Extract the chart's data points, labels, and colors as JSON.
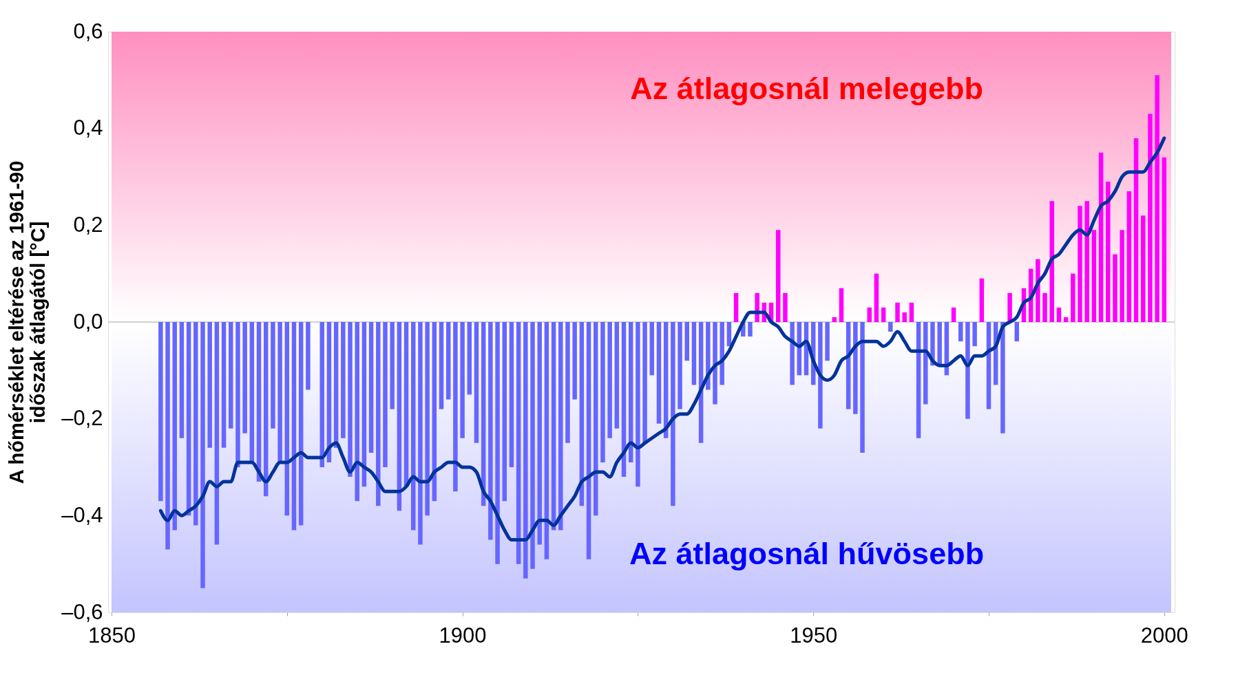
{
  "chart_data": {
    "type": "bar",
    "ylabel": "A hőmérséklet eltérése az 1961-90\nidőszak átlagától [°C]",
    "x": [
      1857,
      1858,
      1859,
      1860,
      1861,
      1862,
      1863,
      1864,
      1865,
      1866,
      1867,
      1868,
      1869,
      1870,
      1871,
      1872,
      1873,
      1874,
      1875,
      1876,
      1877,
      1878,
      1879,
      1880,
      1881,
      1882,
      1883,
      1884,
      1885,
      1886,
      1887,
      1888,
      1889,
      1890,
      1891,
      1892,
      1893,
      1894,
      1895,
      1896,
      1897,
      1898,
      1899,
      1900,
      1901,
      1902,
      1903,
      1904,
      1905,
      1906,
      1907,
      1908,
      1909,
      1910,
      1911,
      1912,
      1913,
      1914,
      1915,
      1916,
      1917,
      1918,
      1919,
      1920,
      1921,
      1922,
      1923,
      1924,
      1925,
      1926,
      1927,
      1928,
      1929,
      1930,
      1931,
      1932,
      1933,
      1934,
      1935,
      1936,
      1937,
      1938,
      1939,
      1940,
      1941,
      1942,
      1943,
      1944,
      1945,
      1946,
      1947,
      1948,
      1949,
      1950,
      1951,
      1952,
      1953,
      1954,
      1955,
      1956,
      1957,
      1958,
      1959,
      1960,
      1961,
      1962,
      1963,
      1964,
      1965,
      1966,
      1967,
      1968,
      1969,
      1970,
      1971,
      1972,
      1973,
      1974,
      1975,
      1976,
      1977,
      1978,
      1979,
      1980,
      1981,
      1982,
      1983,
      1984,
      1985,
      1986,
      1987,
      1988,
      1989,
      1990,
      1991,
      1992,
      1993,
      1994,
      1995,
      1996,
      1997,
      1998,
      1999,
      2000
    ],
    "series": [
      {
        "color": "#6666ff",
        "values": [
          -0.37,
          -0.47,
          -0.43,
          -0.24,
          -0.4,
          -0.42,
          -0.55,
          -0.26,
          -0.46,
          -0.26,
          -0.22,
          -0.3,
          -0.23,
          -0.29,
          -0.33,
          -0.36,
          -0.22,
          -0.29,
          -0.4,
          -0.43,
          -0.42,
          -0.14,
          null,
          -0.3,
          -0.29,
          -0.26,
          -0.24,
          -0.32,
          -0.37,
          -0.34,
          -0.27,
          -0.38,
          -0.3,
          -0.18,
          -0.39,
          -0.34,
          -0.43,
          -0.46,
          -0.4,
          -0.37,
          -0.18,
          -0.16,
          -0.35,
          -0.24,
          -0.15,
          -0.25,
          -0.38,
          -0.45,
          -0.5,
          -0.37,
          -0.3,
          -0.5,
          -0.53,
          -0.51,
          -0.46,
          -0.49,
          -0.43,
          -0.43,
          -0.25,
          -0.16,
          -0.38,
          -0.49,
          -0.4,
          -0.29,
          -0.24,
          -0.22,
          -0.32,
          -0.29,
          -0.34,
          -0.25,
          -0.11,
          -0.21,
          -0.24,
          -0.38,
          -0.18,
          -0.08,
          -0.13,
          -0.25,
          -0.14,
          -0.17,
          -0.13,
          -0.05,
          null,
          -0.03,
          -0.03,
          null,
          null,
          null,
          null,
          null,
          -0.13,
          -0.11,
          -0.11,
          -0.13,
          -0.22,
          -0.08,
          null,
          null,
          -0.18,
          -0.19,
          -0.27,
          null,
          null,
          null,
          -0.02,
          null,
          null,
          null,
          -0.24,
          -0.17,
          -0.09,
          -0.09,
          -0.11,
          null,
          -0.04,
          -0.2,
          -0.05,
          null,
          -0.18,
          -0.13,
          -0.23,
          null,
          -0.04,
          null,
          null,
          null,
          null,
          null,
          null,
          null,
          null,
          null,
          null,
          null,
          null,
          null,
          null,
          null,
          null,
          null,
          null,
          null,
          null,
          null
        ]
      },
      {
        "color": "#ff00ff",
        "values": [
          null,
          null,
          null,
          null,
          null,
          null,
          null,
          null,
          null,
          null,
          null,
          null,
          null,
          null,
          null,
          null,
          null,
          null,
          null,
          null,
          null,
          null,
          null,
          null,
          null,
          null,
          null,
          null,
          null,
          null,
          null,
          null,
          null,
          null,
          null,
          null,
          null,
          null,
          null,
          null,
          null,
          null,
          null,
          null,
          null,
          null,
          null,
          null,
          null,
          null,
          null,
          null,
          null,
          null,
          null,
          null,
          null,
          null,
          null,
          null,
          null,
          null,
          null,
          null,
          null,
          null,
          null,
          null,
          null,
          null,
          null,
          null,
          null,
          null,
          null,
          null,
          null,
          null,
          null,
          null,
          null,
          null,
          0.06,
          null,
          null,
          0.06,
          0.04,
          0.04,
          0.19,
          0.06,
          null,
          null,
          null,
          null,
          null,
          null,
          0.01,
          0.07,
          null,
          null,
          null,
          0.03,
          0.1,
          0.03,
          null,
          0.04,
          0.02,
          0.04,
          null,
          null,
          null,
          null,
          null,
          0.03,
          null,
          null,
          null,
          0.09,
          null,
          null,
          null,
          0.06,
          null,
          0.07,
          0.11,
          0.13,
          0.06,
          0.25,
          0.03,
          0.01,
          0.1,
          0.24,
          0.25,
          0.19,
          0.35,
          0.29,
          0.14,
          0.19,
          0.27,
          0.38,
          0.22,
          0.43,
          0.51,
          0.34
        ]
      },
      {
        "type": "line",
        "color": "#003399",
        "values": [
          -0.39,
          -0.41,
          -0.39,
          -0.4,
          -0.39,
          -0.38,
          -0.36,
          -0.33,
          -0.34,
          -0.33,
          -0.33,
          -0.29,
          -0.29,
          -0.29,
          -0.31,
          -0.33,
          -0.31,
          -0.29,
          -0.29,
          -0.28,
          -0.27,
          -0.28,
          -0.28,
          -0.28,
          -0.26,
          -0.25,
          -0.28,
          -0.31,
          -0.29,
          -0.3,
          -0.31,
          -0.33,
          -0.35,
          -0.35,
          -0.35,
          -0.34,
          -0.32,
          -0.33,
          -0.33,
          -0.31,
          -0.3,
          -0.29,
          -0.29,
          -0.3,
          -0.3,
          -0.31,
          -0.35,
          -0.37,
          -0.4,
          -0.43,
          -0.45,
          -0.45,
          -0.45,
          -0.43,
          -0.41,
          -0.41,
          -0.42,
          -0.4,
          -0.38,
          -0.36,
          -0.33,
          -0.32,
          -0.31,
          -0.31,
          -0.32,
          -0.29,
          -0.27,
          -0.25,
          -0.26,
          -0.25,
          -0.24,
          -0.23,
          -0.22,
          -0.2,
          -0.19,
          -0.19,
          -0.17,
          -0.14,
          -0.11,
          -0.09,
          -0.08,
          -0.06,
          -0.03,
          0.0,
          0.02,
          0.02,
          0.02,
          0.0,
          -0.01,
          -0.03,
          -0.04,
          -0.05,
          -0.04,
          -0.08,
          -0.11,
          -0.12,
          -0.11,
          -0.08,
          -0.07,
          -0.05,
          -0.04,
          -0.04,
          -0.04,
          -0.05,
          -0.04,
          -0.02,
          -0.04,
          -0.06,
          -0.06,
          -0.06,
          -0.08,
          -0.09,
          -0.09,
          -0.08,
          -0.07,
          -0.09,
          -0.07,
          -0.07,
          -0.06,
          -0.05,
          -0.01,
          0.0,
          0.01,
          0.04,
          0.05,
          0.08,
          0.1,
          0.13,
          0.14,
          0.16,
          0.18,
          0.19,
          0.18,
          0.21,
          0.24,
          0.25,
          0.27,
          0.3,
          0.31,
          0.31,
          0.31,
          0.33,
          0.35,
          0.38
        ]
      }
    ],
    "xlim": [
      1850,
      2001
    ],
    "xticks": [
      1850,
      {
        "value": 1875,
        "label": null
      },
      1900,
      {
        "value": 1925,
        "label": null
      },
      1950,
      {
        "value": 1975,
        "label": null
      },
      2000
    ],
    "ylim": [
      -0.6,
      0.6
    ],
    "yticks": [
      {
        "value": -0.6,
        "label": "–0,6"
      },
      {
        "value": -0.4,
        "label": "–0,4"
      },
      {
        "value": -0.2,
        "label": "–0,2"
      },
      {
        "value": 0,
        "label": "0,0"
      },
      {
        "value": 0.2,
        "label": "0,2"
      },
      {
        "value": 0.4,
        "label": "0,4"
      },
      {
        "value": 0.6,
        "label": "0,6"
      }
    ],
    "bands": [
      {
        "axis": "y",
        "from": 0,
        "to": 0.6,
        "color": "#ff8fc0",
        "label": "Az átlagosnál melegebb"
      },
      {
        "axis": "y",
        "from": 0,
        "to": -0.6,
        "color": "#c4c4ff",
        "label": "Az átlagosnál hűvösebb"
      }
    ],
    "ref_lines": [
      {
        "axis": "y",
        "value": 0,
        "color": "#c0c0c0"
      }
    ],
    "grid": false
  }
}
